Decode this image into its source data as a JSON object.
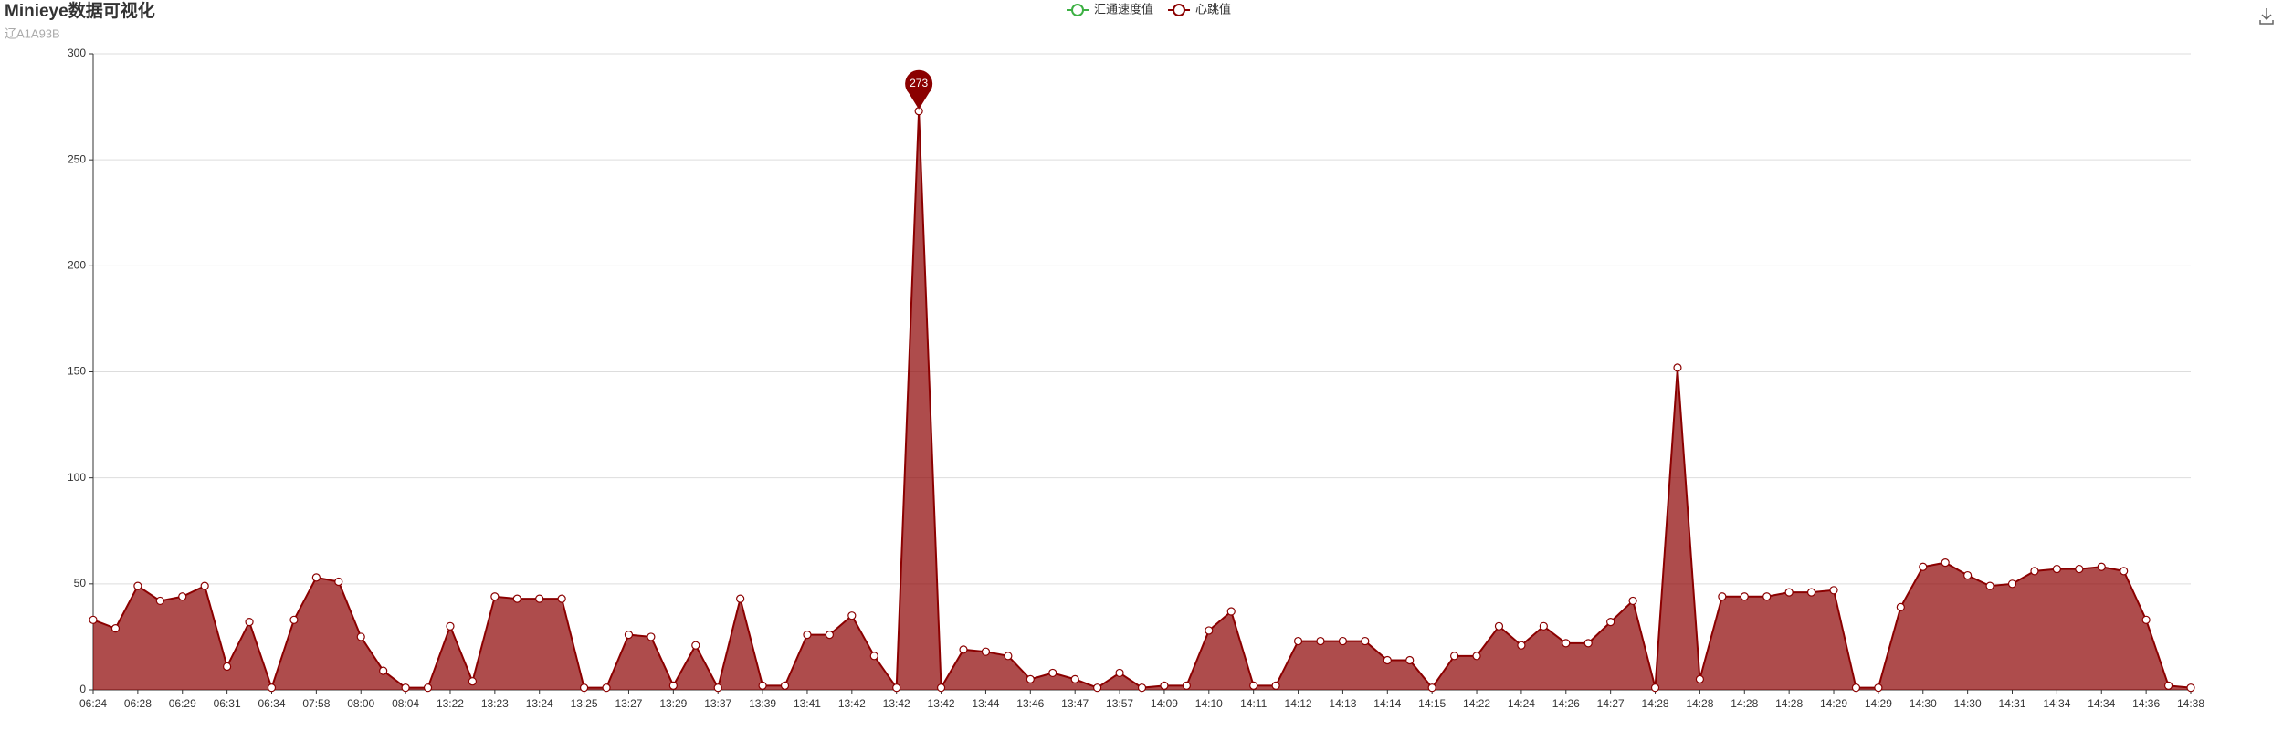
{
  "chart_data": {
    "type": "line",
    "title": "Minieye数据可视化",
    "subtitle": "辽A1A93B",
    "categories": [
      "06:24",
      null,
      "06:28",
      null,
      "06:29",
      null,
      "06:31",
      null,
      "06:34",
      null,
      "07:58",
      null,
      "08:00",
      null,
      "08:04",
      null,
      "13:22",
      null,
      "13:23",
      null,
      "13:24",
      null,
      "13:25",
      null,
      "13:27",
      null,
      "13:29",
      null,
      "13:37",
      null,
      "13:39",
      null,
      "13:41",
      null,
      "13:42",
      null,
      "13:42",
      null,
      "13:42",
      null,
      "13:44",
      null,
      "13:46",
      null,
      "13:47",
      null,
      "13:57",
      null,
      "14:09",
      null,
      "14:10",
      null,
      "14:11",
      null,
      "14:12",
      null,
      "14:13",
      null,
      "14:14",
      null,
      "14:15",
      null,
      "14:22",
      null,
      "14:24",
      null,
      "14:26",
      null,
      "14:27",
      null,
      "14:28",
      null,
      "14:28",
      null,
      "14:28",
      null,
      "14:28",
      null,
      "14:29",
      null,
      "14:29",
      null,
      "14:30",
      null,
      "14:30",
      null,
      "14:31",
      null,
      "14:34",
      null,
      "14:34",
      null,
      "14:36",
      null,
      "14:38"
    ],
    "series": [
      {
        "name": "汇通速度值",
        "color": "#3cb043",
        "values": [
          null,
          null,
          null,
          null,
          null,
          null,
          null,
          null,
          null,
          null,
          null,
          null,
          null,
          null,
          null,
          null,
          null,
          null,
          null,
          null,
          null,
          null,
          null,
          null,
          null,
          null,
          null,
          null,
          null,
          null,
          null,
          null,
          null,
          null,
          null,
          null,
          null,
          null,
          null,
          null,
          null,
          null,
          null,
          null,
          null,
          null,
          null,
          null,
          null,
          null,
          null,
          null,
          null,
          null,
          null,
          null,
          null,
          null,
          null,
          null,
          null,
          null,
          null,
          null,
          null,
          null,
          null,
          null,
          null,
          null,
          null,
          null,
          null,
          null,
          null,
          null,
          null,
          null,
          null,
          null,
          null,
          null,
          null,
          null,
          null,
          null,
          null,
          null,
          null,
          null,
          null,
          null,
          null,
          null,
          null
        ]
      },
      {
        "name": "心跳值",
        "color": "#8b0000",
        "area": true,
        "mark_point": "max",
        "values": [
          33,
          29,
          49,
          42,
          44,
          49,
          11,
          32,
          1,
          33,
          53,
          51,
          25,
          9,
          1,
          1,
          30,
          4,
          44,
          43,
          43,
          43,
          1,
          1,
          26,
          25,
          2,
          21,
          1,
          43,
          2,
          2,
          26,
          26,
          35,
          16,
          1,
          273,
          1,
          19,
          18,
          16,
          5,
          8,
          5,
          1,
          8,
          1,
          2,
          2,
          28,
          37,
          2,
          2,
          23,
          23,
          23,
          23,
          14,
          14,
          1,
          16,
          16,
          30,
          21,
          30,
          22,
          22,
          32,
          42,
          1,
          152,
          5,
          44,
          44,
          44,
          46,
          46,
          47,
          1,
          1,
          39,
          58,
          60,
          54,
          49,
          50,
          56,
          57,
          57,
          58,
          56,
          33,
          2,
          1
        ]
      }
    ],
    "ylim": [
      0,
      300
    ],
    "yticks": [
      0,
      50,
      100,
      150,
      200,
      250,
      300
    ],
    "grid": true,
    "legend": "top"
  }
}
